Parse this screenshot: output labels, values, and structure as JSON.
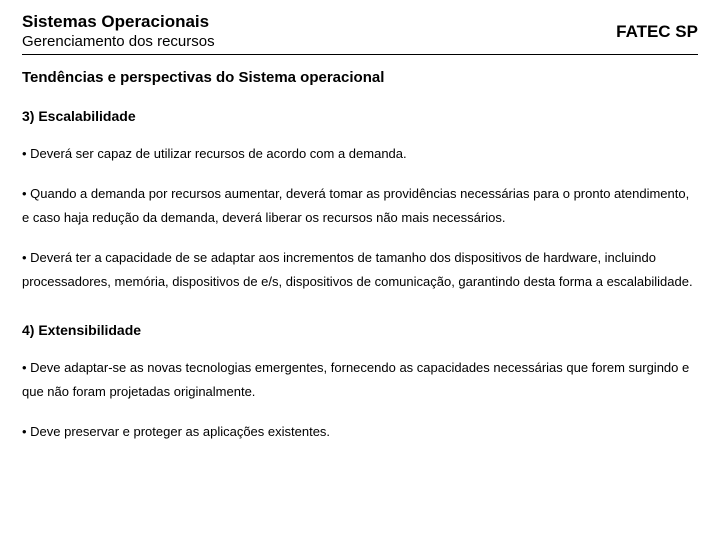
{
  "header": {
    "course_title": "Sistemas Operacionais",
    "course_subtitle": "Gerenciamento dos recursos",
    "institution": "FATEC SP"
  },
  "section_title": "Tendências e perspectivas do Sistema operacional",
  "topic3": {
    "heading": "3) Escalabilidade",
    "b1": "• Deverá ser capaz de utilizar recursos de acordo com a demanda.",
    "b2": "• Quando a demanda por recursos aumentar, deverá tomar as providências necessárias para o pronto atendimento, e caso haja redução da demanda, deverá liberar os recursos não mais necessários.",
    "b3": "• Deverá ter a capacidade de se adaptar aos incrementos de tamanho dos dispositivos de hardware, incluindo processadores, memória, dispositivos de e/s, dispositivos de comunicação, garantindo desta forma a escalabilidade."
  },
  "topic4": {
    "heading": "4) Extensibilidade",
    "b1": "• Deve adaptar-se as novas tecnologias emergentes, fornecendo as capacidades necessárias que forem surgindo e que não foram projetadas originalmente.",
    "b2": "• Deve preservar e proteger as aplicações existentes."
  }
}
